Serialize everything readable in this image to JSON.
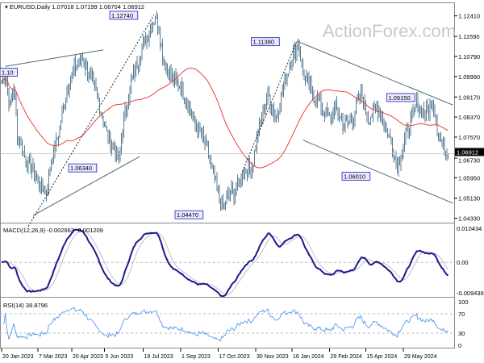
{
  "header": {
    "symbol": "EURUSD,Daily",
    "ohlc": "1.07018 1.07199 1.06704 1.06912"
  },
  "watermark": "ActionForex.com",
  "colors": {
    "bars": "#5a7d96",
    "sma": "#e8413a",
    "macd": "#1a1a8c",
    "signal": "#c0c0c0",
    "rsi": "#3c8ff0",
    "trend": "#4b6a6a",
    "label_border": "#2020c0"
  },
  "chart_data": [
    {
      "type": "line",
      "title": "EURUSD,Daily",
      "total_bars": 370,
      "x_tick_labels": [
        {
          "bar": 0,
          "label": "20 Jan 2023"
        },
        {
          "bar": 30,
          "label": "7 Mar 2023"
        },
        {
          "bar": 58,
          "label": "20 Apr 2023"
        },
        {
          "bar": 85,
          "label": "5 Jun 2023"
        },
        {
          "bar": 117,
          "label": "19 Jul 2023"
        },
        {
          "bar": 148,
          "label": "1 Sep 2023"
        },
        {
          "bar": 179,
          "label": "17 Oct 2023"
        },
        {
          "bar": 210,
          "label": "30 Nov 2023"
        },
        {
          "bar": 240,
          "label": "16 Jan 2024"
        },
        {
          "bar": 271,
          "label": "29 Feb 2024"
        },
        {
          "bar": 301,
          "label": "15 Apr 2024"
        },
        {
          "bar": 332,
          "label": "29 May 2024"
        }
      ],
      "y_ticks": [
        "1.12410",
        "1.11590",
        "1.10790",
        "1.09990",
        "1.09170",
        "1.08370",
        "1.07570",
        "1.06730",
        "1.05950",
        "1.05130",
        "1.04330"
      ],
      "ylim": [
        1.0422,
        1.1285
      ],
      "last_price": "1.06912",
      "close_anchors": [
        [
          0,
          1.098
        ],
        [
          3,
          1.1016
        ],
        [
          7,
          1.087
        ],
        [
          10,
          1.097
        ],
        [
          13,
          1.077
        ],
        [
          20,
          1.067
        ],
        [
          27,
          1.061
        ],
        [
          33,
          1.056
        ],
        [
          37,
          1.054
        ],
        [
          40,
          1.064
        ],
        [
          47,
          1.077
        ],
        [
          53,
          1.093
        ],
        [
          60,
          1.103
        ],
        [
          67,
          1.107
        ],
        [
          73,
          1.1
        ],
        [
          80,
          1.09
        ],
        [
          87,
          1.077
        ],
        [
          93,
          1.071
        ],
        [
          97,
          1.066
        ],
        [
          100,
          1.08
        ],
        [
          107,
          1.097
        ],
        [
          113,
          1.107
        ],
        [
          120,
          1.116
        ],
        [
          127,
          1.124
        ],
        [
          130,
          1.12
        ],
        [
          133,
          1.107
        ],
        [
          140,
          1.1
        ],
        [
          147,
          1.097
        ],
        [
          153,
          1.09
        ],
        [
          160,
          1.08
        ],
        [
          167,
          1.075
        ],
        [
          173,
          1.064
        ],
        [
          180,
          1.051
        ],
        [
          183,
          1.047
        ],
        [
          187,
          1.053
        ],
        [
          193,
          1.054
        ],
        [
          200,
          1.062
        ],
        [
          207,
          1.064
        ],
        [
          213,
          1.08
        ],
        [
          220,
          1.093
        ],
        [
          227,
          1.083
        ],
        [
          233,
          1.097
        ],
        [
          240,
          1.107
        ],
        [
          245,
          1.113
        ],
        [
          250,
          1.1
        ],
        [
          257,
          1.093
        ],
        [
          263,
          1.089
        ],
        [
          270,
          1.083
        ],
        [
          277,
          1.087
        ],
        [
          283,
          1.08
        ],
        [
          290,
          1.083
        ],
        [
          297,
          1.093
        ],
        [
          303,
          1.083
        ],
        [
          310,
          1.088
        ],
        [
          317,
          1.08
        ],
        [
          323,
          1.072
        ],
        [
          327,
          1.064
        ],
        [
          330,
          1.069
        ],
        [
          337,
          1.08
        ],
        [
          343,
          1.089
        ],
        [
          350,
          1.085
        ],
        [
          357,
          1.09
        ],
        [
          360,
          1.08
        ],
        [
          363,
          1.074
        ],
        [
          369,
          1.0691
        ]
      ],
      "sma_period": 55,
      "price_labels": [
        {
          "bar": 0,
          "price": 1.1016,
          "label": "1.10"
        },
        {
          "bar": 102,
          "price": 1.1274,
          "label": "1.12740"
        },
        {
          "bar": 219,
          "price": 1.1138,
          "label": "1.11380"
        },
        {
          "bar": 331,
          "price": 1.0915,
          "label": "1.09150"
        },
        {
          "bar": 68,
          "price": 1.0634,
          "label": "1.06340"
        },
        {
          "bar": 156,
          "price": 1.0447,
          "label": "1.04470"
        },
        {
          "bar": 294,
          "price": 1.0601,
          "label": "1.06010"
        }
      ],
      "trendlines": [
        {
          "from": [
            3,
            1.1039
          ],
          "to": [
            84,
            1.1105
          ],
          "style": "solid"
        },
        {
          "from": [
            26,
            1.0444
          ],
          "to": [
            114,
            1.0679
          ],
          "style": "solid"
        },
        {
          "from": [
            22,
            1.04
          ],
          "to": [
            126,
            1.1245
          ],
          "style": "dotted"
        },
        {
          "from": [
            199,
            1.062
          ],
          "to": [
            244,
            1.114
          ],
          "style": "dotted"
        },
        {
          "from": [
            244,
            1.114
          ],
          "to": [
            373,
            1.0885
          ],
          "style": "solid"
        },
        {
          "from": [
            249,
            1.0745
          ],
          "to": [
            373,
            1.0493
          ],
          "style": "solid"
        }
      ]
    },
    {
      "type": "line",
      "title": "MACD(12,26,9) -0.002663 -0.001209",
      "y_ticks": [
        "0.010434",
        "0.00",
        "-0.009436"
      ],
      "ylim": [
        -0.009436,
        0.010434
      ]
    },
    {
      "type": "line",
      "title": "RSI(14) 38.8796",
      "y_ticks": [
        "100",
        "70",
        "30",
        "0"
      ],
      "ylim": [
        0,
        100
      ],
      "levels": [
        70,
        30
      ]
    }
  ]
}
